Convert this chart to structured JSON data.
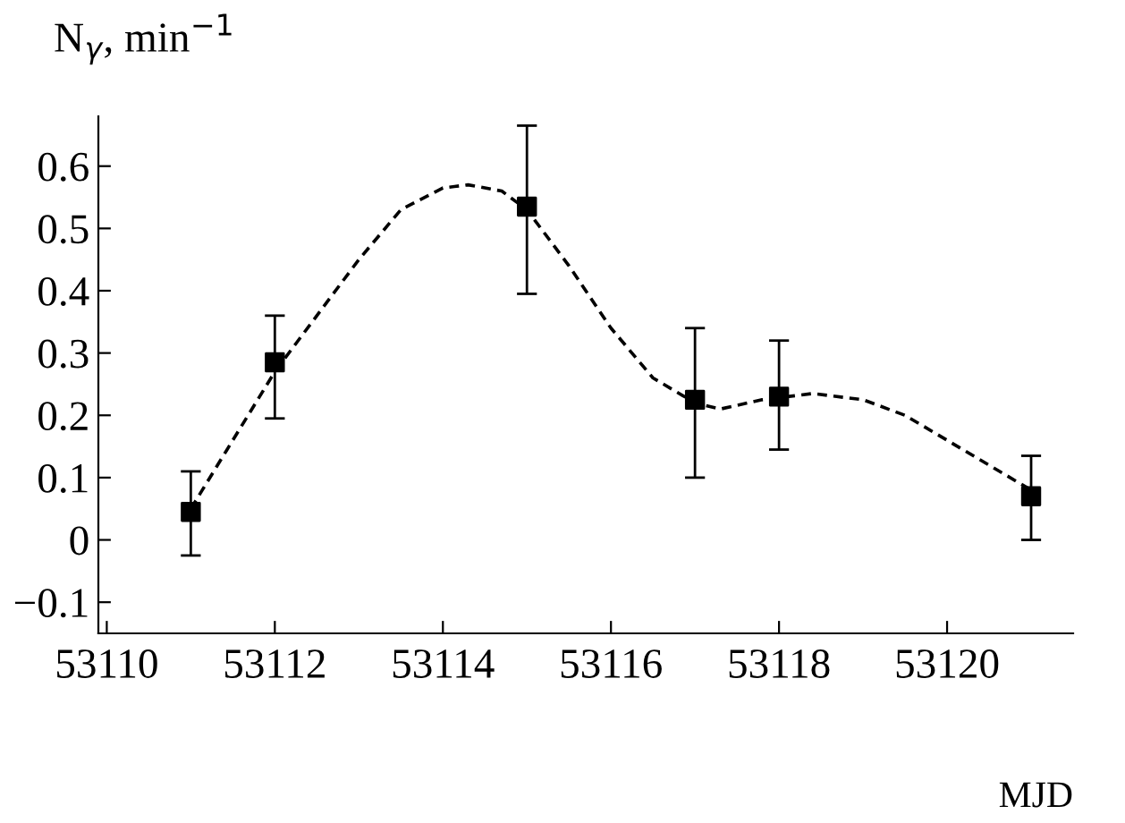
{
  "chart_data": {
    "type": "scatter",
    "xlabel": "MJD",
    "ylabel": "N$_{γ}$, min$^{−1}$",
    "xlim": [
      53109.9,
      53121.5
    ],
    "ylim": [
      -0.15,
      0.68
    ],
    "xticks": [
      53110,
      53112,
      53114,
      53116,
      53118,
      53120
    ],
    "yticks": [
      {
        "value": -0.1,
        "label": "−0.1"
      },
      0,
      0.1,
      0.2,
      0.3,
      0.4,
      0.5,
      0.6
    ],
    "grid": false,
    "legend": false,
    "series": [
      {
        "type": "line",
        "color": "#000000",
        "marker": "none",
        "line_style": "dashed",
        "x": [
          53111,
          53111.5,
          53112,
          53112.5,
          53113,
          53113.5,
          53114,
          53114.3,
          53114.7,
          53115,
          53115.5,
          53116,
          53116.5,
          53117,
          53117.3,
          53117.8,
          53118.4,
          53119,
          53119.5,
          53120,
          53120.5,
          53121
        ],
        "values": [
          0.05,
          0.16,
          0.27,
          0.36,
          0.45,
          0.53,
          0.565,
          0.57,
          0.56,
          0.53,
          0.44,
          0.34,
          0.26,
          0.22,
          0.21,
          0.225,
          0.235,
          0.225,
          0.2,
          0.16,
          0.12,
          0.08
        ]
      },
      {
        "color": "#000000",
        "marker": "square",
        "x": [
          53111,
          53112,
          53115,
          53117,
          53118,
          53121
        ],
        "values": [
          0.045,
          0.285,
          0.535,
          0.225,
          0.23,
          0.07
        ],
        "errors": [
          [
            -0.025,
            0.11
          ],
          [
            0.195,
            0.36
          ],
          [
            0.395,
            0.665
          ],
          [
            0.1,
            0.34
          ],
          [
            0.145,
            0.32
          ],
          [
            0.0,
            0.135
          ]
        ]
      }
    ]
  }
}
